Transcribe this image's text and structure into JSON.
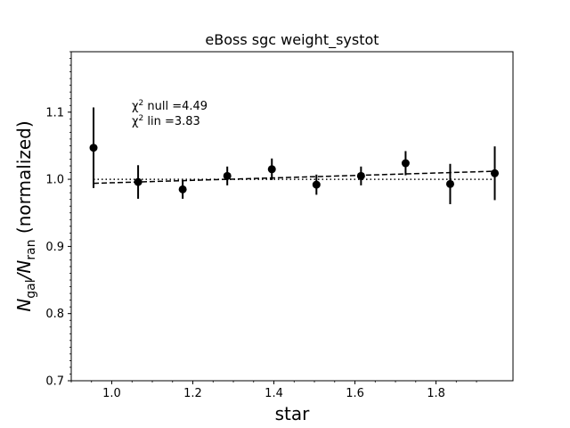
{
  "chart_data": {
    "type": "scatter",
    "title": "eBoss sgc weight_systot",
    "xlabel": "star",
    "ylabel": {
      "prefix": "N",
      "num_sub": "gal",
      "slash": "/N",
      "den_sub": "ran",
      "suffix": " (normalized)"
    },
    "xlim": [
      0.9,
      1.99
    ],
    "ylim": [
      0.7,
      1.19
    ],
    "xticks": [
      1.0,
      1.2,
      1.4,
      1.6,
      1.8
    ],
    "xtick_labels": [
      "1.0",
      "1.2",
      "1.4",
      "1.6",
      "1.8"
    ],
    "yticks": [
      0.7,
      0.8,
      0.9,
      1.0,
      1.1
    ],
    "ytick_labels": [
      "0.7",
      "0.8",
      "0.9",
      "1.0",
      "1.1"
    ],
    "grid": false,
    "series": [
      {
        "style": "errorbar",
        "color": "#000000",
        "x": [
          0.955,
          1.065,
          1.175,
          1.285,
          1.395,
          1.505,
          1.615,
          1.725,
          1.835,
          1.945
        ],
        "y": [
          1.047,
          0.996,
          0.985,
          1.005,
          1.015,
          0.992,
          1.005,
          1.024,
          0.993,
          1.009
        ],
        "yerr": [
          0.06,
          0.025,
          0.014,
          0.014,
          0.016,
          0.015,
          0.014,
          0.018,
          0.03,
          0.04
        ]
      }
    ],
    "null_line": {
      "y": 1.0,
      "style": "dotted"
    },
    "lin_fit": {
      "x": [
        0.955,
        1.945
      ],
      "y": [
        0.994,
        1.012
      ],
      "style": "dashed"
    },
    "annotations": {
      "chi_null": {
        "symbol": "χ",
        "sup": "2",
        "text": " null =4.49"
      },
      "chi_lin": {
        "symbol": "χ",
        "sup": "2",
        "text": " lin =3.83"
      }
    }
  }
}
